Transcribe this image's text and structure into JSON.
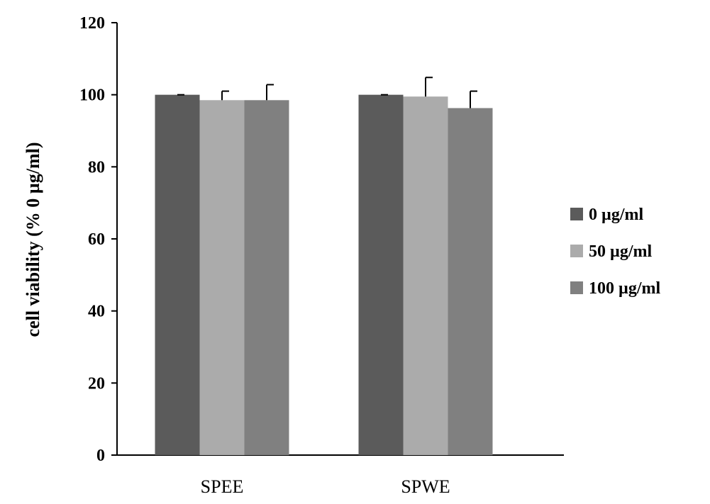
{
  "chart_data": {
    "type": "bar",
    "title": "",
    "xlabel": "",
    "ylabel": "cell viability (% 0 µg/ml)",
    "ylim": [
      0,
      120
    ],
    "yticks": [
      "0",
      "20",
      "40",
      "60",
      "80",
      "100",
      "120"
    ],
    "categories": [
      "SPEE",
      "SPWE"
    ],
    "series": [
      {
        "name": "0 µg/ml",
        "values": [
          100,
          100
        ],
        "errors": [
          0,
          0
        ],
        "color": "#5b5b5b"
      },
      {
        "name": "50 µg/ml",
        "values": [
          98.5,
          99.5
        ],
        "errors": [
          2.5,
          5.3
        ],
        "color": "#ababab"
      },
      {
        "name": "100 µg/ml",
        "values": [
          98.5,
          96.3
        ],
        "errors": [
          4.3,
          4.7
        ],
        "color": "#808080"
      }
    ],
    "grid": false,
    "legend_position": "right",
    "error_bars": true
  }
}
